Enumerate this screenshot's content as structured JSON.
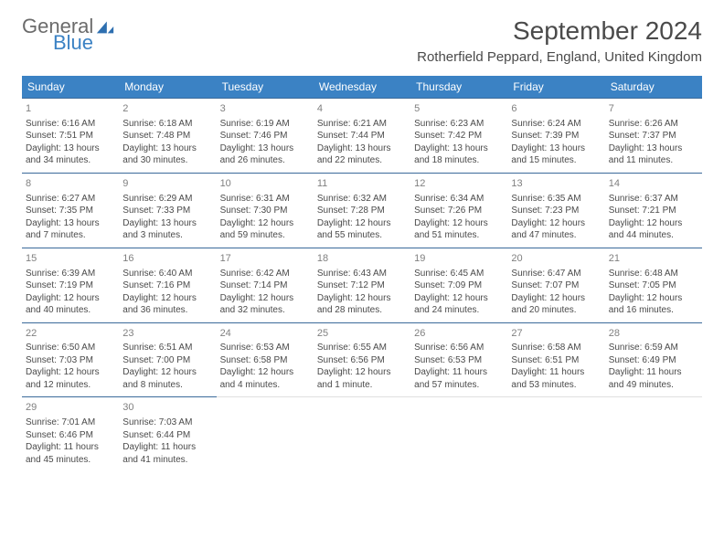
{
  "logo": {
    "general": "General",
    "blue": "Blue"
  },
  "title": "September 2024",
  "location": "Rotherfield Peppard, England, United Kingdom",
  "colors": {
    "header_bg": "#3b82c4",
    "header_text": "#ffffff",
    "border": "#3b6a9a",
    "day_number": "#808080",
    "body_text": "#4a4a4a"
  },
  "dayHeaders": [
    "Sunday",
    "Monday",
    "Tuesday",
    "Wednesday",
    "Thursday",
    "Friday",
    "Saturday"
  ],
  "days": [
    {
      "n": 1,
      "sunrise": "6:16 AM",
      "sunset": "7:51 PM",
      "dl": "13 hours and 34 minutes."
    },
    {
      "n": 2,
      "sunrise": "6:18 AM",
      "sunset": "7:48 PM",
      "dl": "13 hours and 30 minutes."
    },
    {
      "n": 3,
      "sunrise": "6:19 AM",
      "sunset": "7:46 PM",
      "dl": "13 hours and 26 minutes."
    },
    {
      "n": 4,
      "sunrise": "6:21 AM",
      "sunset": "7:44 PM",
      "dl": "13 hours and 22 minutes."
    },
    {
      "n": 5,
      "sunrise": "6:23 AM",
      "sunset": "7:42 PM",
      "dl": "13 hours and 18 minutes."
    },
    {
      "n": 6,
      "sunrise": "6:24 AM",
      "sunset": "7:39 PM",
      "dl": "13 hours and 15 minutes."
    },
    {
      "n": 7,
      "sunrise": "6:26 AM",
      "sunset": "7:37 PM",
      "dl": "13 hours and 11 minutes."
    },
    {
      "n": 8,
      "sunrise": "6:27 AM",
      "sunset": "7:35 PM",
      "dl": "13 hours and 7 minutes."
    },
    {
      "n": 9,
      "sunrise": "6:29 AM",
      "sunset": "7:33 PM",
      "dl": "13 hours and 3 minutes."
    },
    {
      "n": 10,
      "sunrise": "6:31 AM",
      "sunset": "7:30 PM",
      "dl": "12 hours and 59 minutes."
    },
    {
      "n": 11,
      "sunrise": "6:32 AM",
      "sunset": "7:28 PM",
      "dl": "12 hours and 55 minutes."
    },
    {
      "n": 12,
      "sunrise": "6:34 AM",
      "sunset": "7:26 PM",
      "dl": "12 hours and 51 minutes."
    },
    {
      "n": 13,
      "sunrise": "6:35 AM",
      "sunset": "7:23 PM",
      "dl": "12 hours and 47 minutes."
    },
    {
      "n": 14,
      "sunrise": "6:37 AM",
      "sunset": "7:21 PM",
      "dl": "12 hours and 44 minutes."
    },
    {
      "n": 15,
      "sunrise": "6:39 AM",
      "sunset": "7:19 PM",
      "dl": "12 hours and 40 minutes."
    },
    {
      "n": 16,
      "sunrise": "6:40 AM",
      "sunset": "7:16 PM",
      "dl": "12 hours and 36 minutes."
    },
    {
      "n": 17,
      "sunrise": "6:42 AM",
      "sunset": "7:14 PM",
      "dl": "12 hours and 32 minutes."
    },
    {
      "n": 18,
      "sunrise": "6:43 AM",
      "sunset": "7:12 PM",
      "dl": "12 hours and 28 minutes."
    },
    {
      "n": 19,
      "sunrise": "6:45 AM",
      "sunset": "7:09 PM",
      "dl": "12 hours and 24 minutes."
    },
    {
      "n": 20,
      "sunrise": "6:47 AM",
      "sunset": "7:07 PM",
      "dl": "12 hours and 20 minutes."
    },
    {
      "n": 21,
      "sunrise": "6:48 AM",
      "sunset": "7:05 PM",
      "dl": "12 hours and 16 minutes."
    },
    {
      "n": 22,
      "sunrise": "6:50 AM",
      "sunset": "7:03 PM",
      "dl": "12 hours and 12 minutes."
    },
    {
      "n": 23,
      "sunrise": "6:51 AM",
      "sunset": "7:00 PM",
      "dl": "12 hours and 8 minutes."
    },
    {
      "n": 24,
      "sunrise": "6:53 AM",
      "sunset": "6:58 PM",
      "dl": "12 hours and 4 minutes."
    },
    {
      "n": 25,
      "sunrise": "6:55 AM",
      "sunset": "6:56 PM",
      "dl": "12 hours and 1 minute."
    },
    {
      "n": 26,
      "sunrise": "6:56 AM",
      "sunset": "6:53 PM",
      "dl": "11 hours and 57 minutes."
    },
    {
      "n": 27,
      "sunrise": "6:58 AM",
      "sunset": "6:51 PM",
      "dl": "11 hours and 53 minutes."
    },
    {
      "n": 28,
      "sunrise": "6:59 AM",
      "sunset": "6:49 PM",
      "dl": "11 hours and 49 minutes."
    },
    {
      "n": 29,
      "sunrise": "7:01 AM",
      "sunset": "6:46 PM",
      "dl": "11 hours and 45 minutes."
    },
    {
      "n": 30,
      "sunrise": "7:03 AM",
      "sunset": "6:44 PM",
      "dl": "11 hours and 41 minutes."
    }
  ],
  "labels": {
    "sunrise": "Sunrise:",
    "sunset": "Sunset:",
    "daylight": "Daylight:"
  }
}
